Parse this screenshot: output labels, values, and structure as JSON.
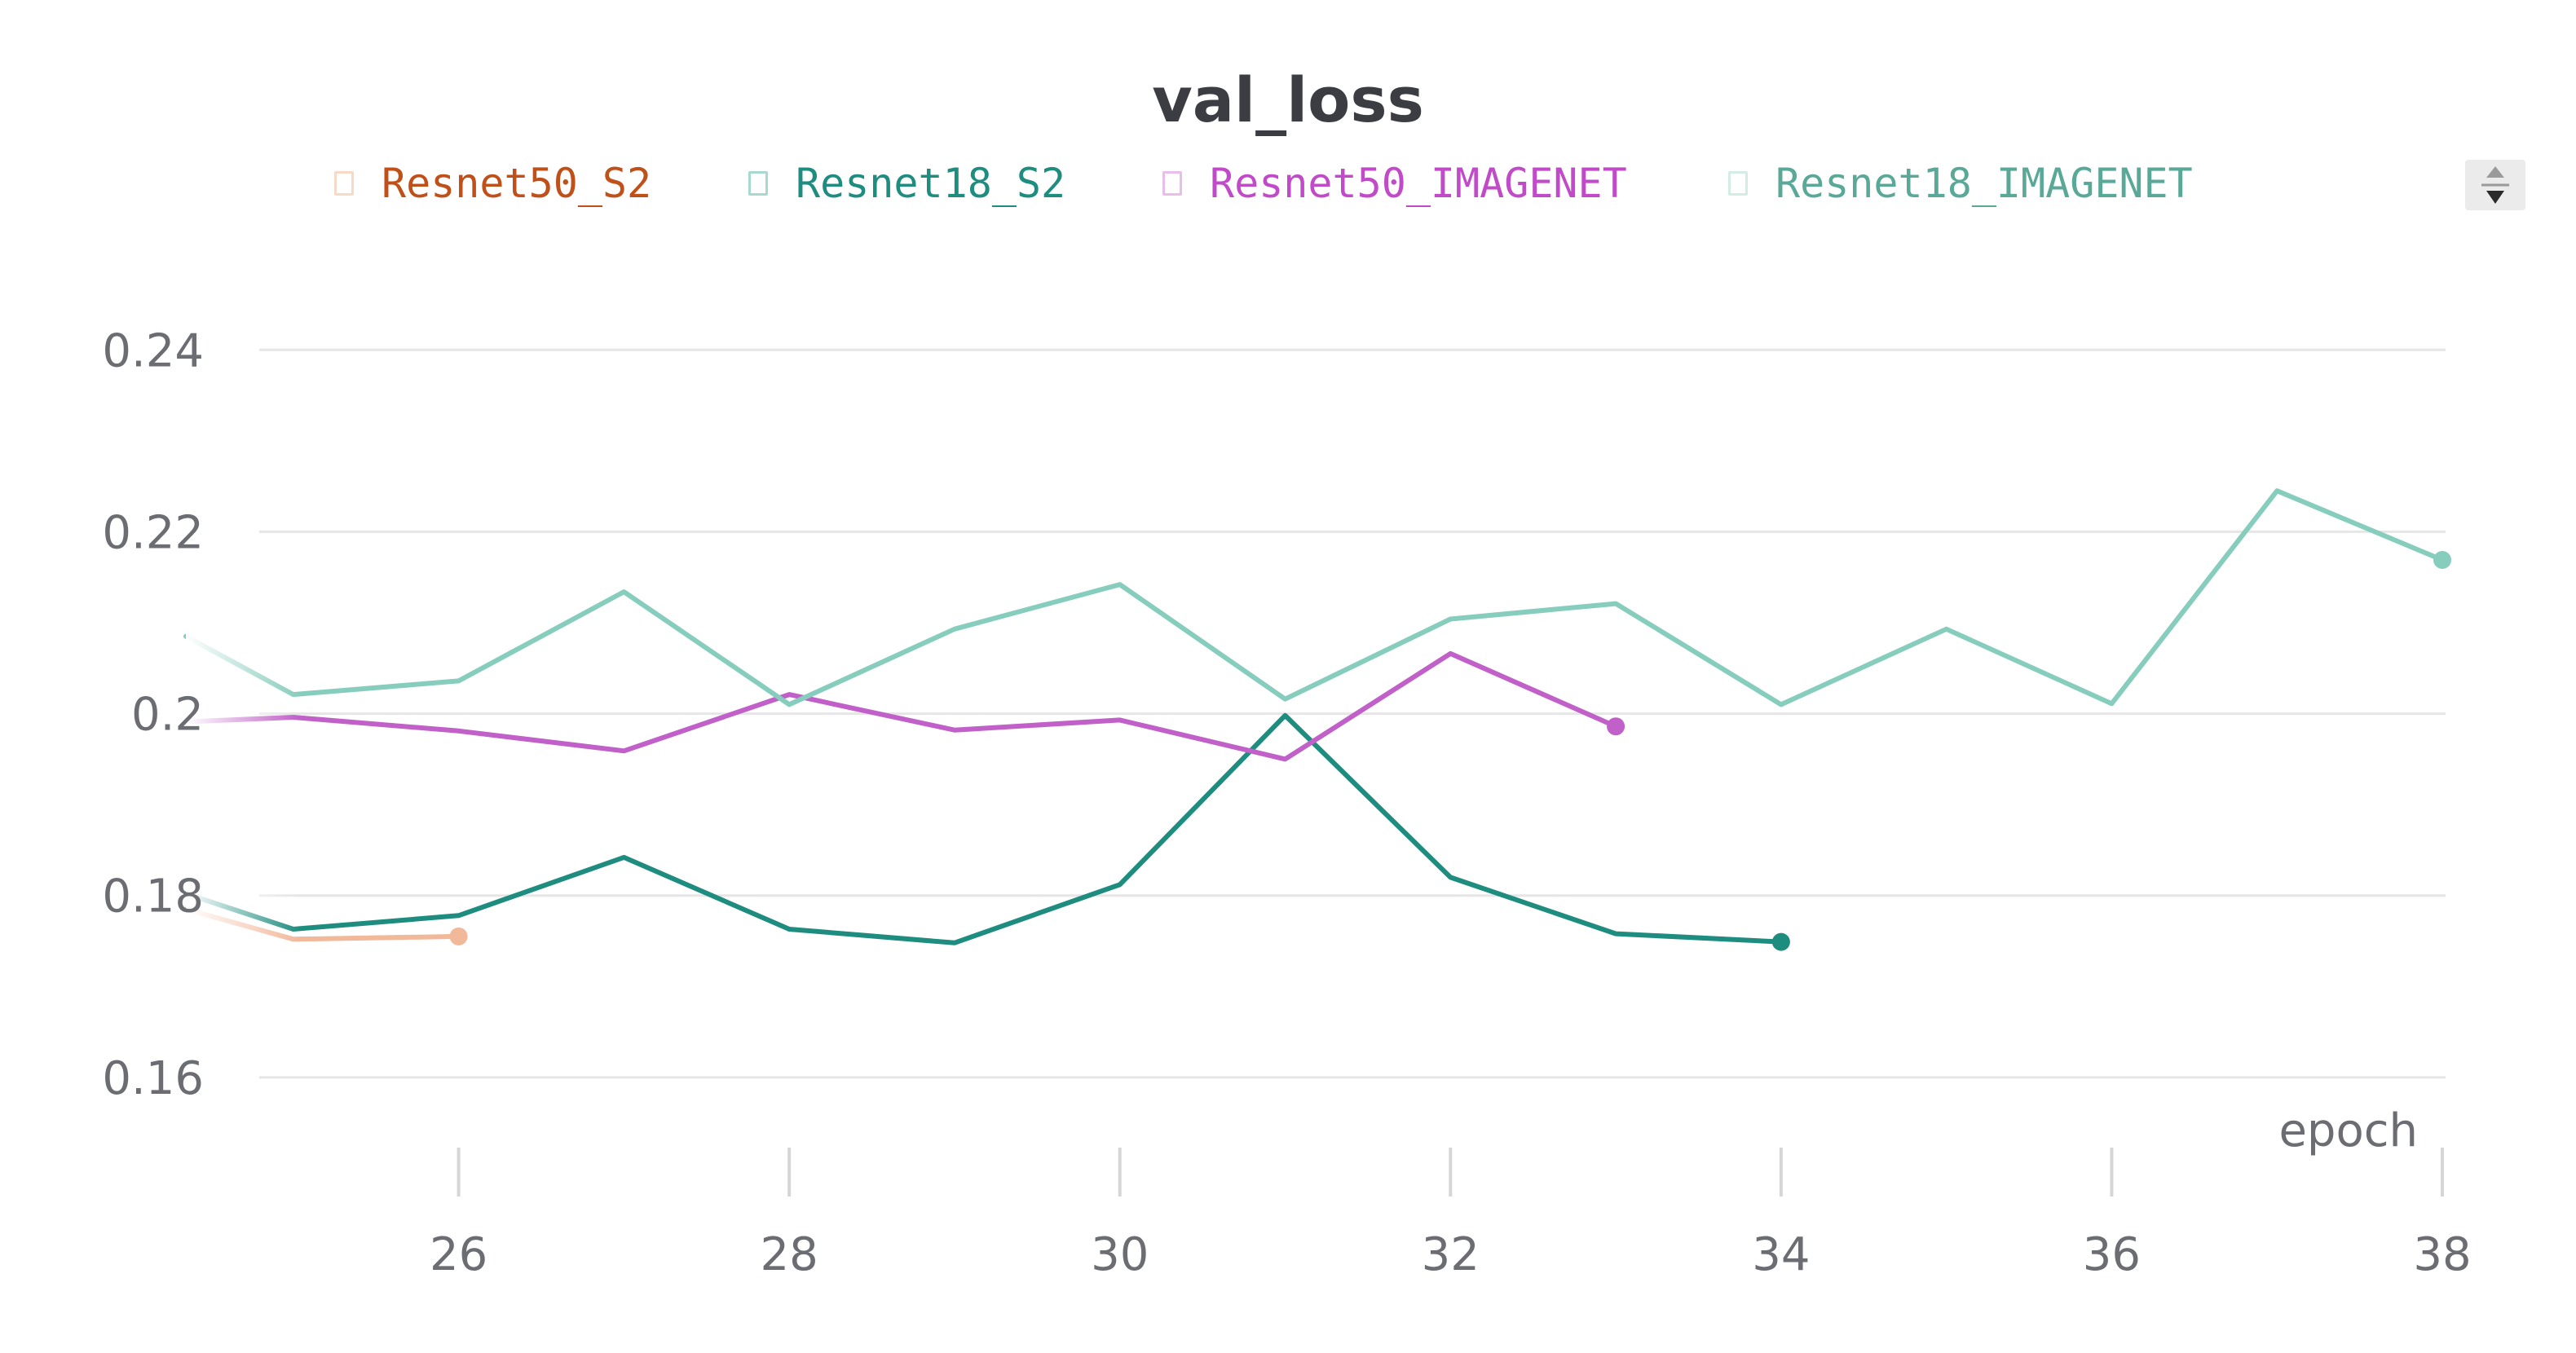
{
  "chart_data": {
    "type": "line",
    "title": "val_loss",
    "xlabel": "epoch",
    "ylabel": "",
    "xlim": [
      24.35,
      38
    ],
    "ylim": [
      0.153,
      0.248
    ],
    "x_ticks": [
      26,
      28,
      30,
      32,
      34,
      36,
      38
    ],
    "y_ticks": [
      0.16,
      0.18,
      0.2,
      0.22,
      0.24
    ],
    "x_tick_labels": [
      "26",
      "28",
      "30",
      "32",
      "34",
      "36",
      "38"
    ],
    "y_tick_labels": [
      "0.16",
      "0.18",
      "0.2",
      "0.22",
      "0.24"
    ],
    "grid": true,
    "legend_position": "top",
    "series": [
      {
        "name": "Resnet50_S2",
        "color": "#f2b89a",
        "label_color": "#c0501a",
        "x": [
          24.35,
          25,
          26
        ],
        "y": [
          0.1785,
          0.1752,
          0.1755
        ]
      },
      {
        "name": "Resnet18_S2",
        "color": "#1f8c80",
        "label_color": "#1f8c80",
        "x": [
          24.35,
          25,
          26,
          27,
          28,
          29,
          30,
          31,
          32,
          33,
          34
        ],
        "y": [
          0.1802,
          0.1763,
          0.1778,
          0.1842,
          0.1763,
          0.1748,
          0.1812,
          0.1998,
          0.182,
          0.1758,
          0.1749
        ]
      },
      {
        "name": "Resnet50_IMAGENET",
        "color": "#c060c8",
        "label_color": "#c04ac8",
        "x": [
          24.35,
          25,
          26,
          27,
          28,
          29,
          30,
          31,
          32,
          33
        ],
        "y": [
          0.1991,
          0.1996,
          0.1981,
          0.1959,
          0.2021,
          0.1982,
          0.1993,
          0.195,
          0.2066,
          0.1986
        ]
      },
      {
        "name": "Resnet18_IMAGENET",
        "color": "#87cdbd",
        "label_color": "#5aa898",
        "x": [
          24.35,
          25,
          26,
          27,
          28,
          29,
          30,
          31,
          32,
          33,
          34,
          35,
          36,
          37,
          38
        ],
        "y": [
          0.2085,
          0.2021,
          0.2036,
          0.2134,
          0.201,
          0.2093,
          0.2142,
          0.2016,
          0.2104,
          0.2121,
          0.201,
          0.2093,
          0.2011,
          0.2245,
          0.2169
        ]
      }
    ]
  }
}
